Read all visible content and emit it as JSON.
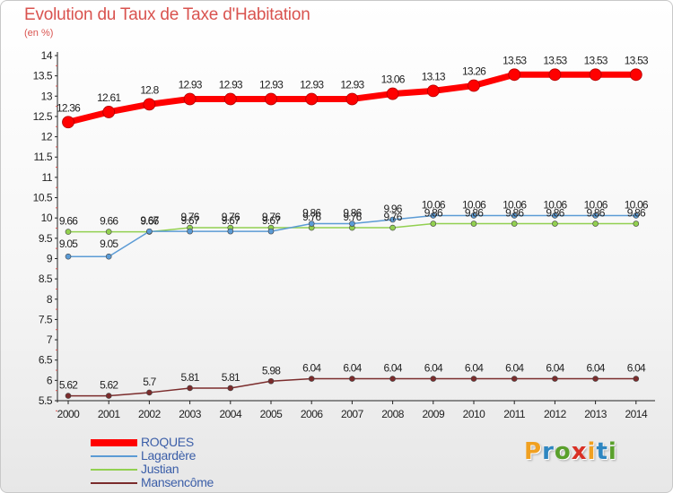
{
  "header": {
    "title": "Evolution du Taux de Taxe d'Habitation",
    "unit": "(en %)"
  },
  "chart_data": {
    "type": "line",
    "title": "Evolution du Taux de Taxe d'Habitation",
    "ylabel": "(en %)",
    "xlabel": "",
    "ylim": [
      5.5,
      14
    ],
    "yticks": [
      5.5,
      6,
      6.5,
      7,
      7.5,
      8,
      8.5,
      9,
      9.5,
      10,
      10.5,
      11,
      11.5,
      12,
      12.5,
      13,
      13.5,
      14
    ],
    "categories": [
      "2000",
      "2001",
      "2002",
      "2003",
      "2004",
      "2005",
      "2006",
      "2007",
      "2008",
      "2009",
      "2010",
      "2011",
      "2012",
      "2013",
      "2014"
    ],
    "series": [
      {
        "name": "ROQUES",
        "color": "#ff0000",
        "values": [
          12.36,
          12.61,
          12.8,
          12.93,
          12.93,
          12.93,
          12.93,
          12.93,
          13.06,
          13.13,
          13.26,
          13.53,
          13.53,
          13.53,
          13.53
        ],
        "labels": [
          "12.36",
          "12.61",
          "12.8",
          "12.93",
          "12.93",
          "12.93",
          "12.93",
          "12.93",
          "13.06",
          "13.13",
          "13.26",
          "13.53",
          "13.53",
          "13.53",
          "13.53"
        ]
      },
      {
        "name": "Lagardère",
        "color": "#5b9bd5",
        "values": [
          9.05,
          9.05,
          9.67,
          9.67,
          9.67,
          9.67,
          9.86,
          9.86,
          9.96,
          10.06,
          10.06,
          10.06,
          10.06,
          10.06,
          10.06
        ],
        "labels": [
          "9.05",
          "9.05",
          "9.67",
          "9.67",
          "9.67",
          "9.67",
          "9.86",
          "9.86",
          "9.96",
          "10.06",
          "10.06",
          "10.06",
          "10.06",
          "10.06",
          "10.06"
        ]
      },
      {
        "name": "Justian",
        "color": "#92d050",
        "values": [
          9.66,
          9.66,
          9.66,
          9.76,
          9.76,
          9.76,
          9.76,
          9.76,
          9.76,
          9.86,
          9.86,
          9.86,
          9.86,
          9.86,
          9.86
        ],
        "labels": [
          "9.66",
          "9.66",
          "9.66",
          "9.76",
          "9.76",
          "9.76",
          "9.76",
          "9.76",
          "9.76",
          "9.86",
          "9.86",
          "9.86",
          "9.86",
          "9.86",
          "9.86"
        ]
      },
      {
        "name": "Mansencôme",
        "color": "#7b2c2c",
        "values": [
          5.62,
          5.62,
          5.7,
          5.81,
          5.81,
          5.98,
          6.04,
          6.04,
          6.04,
          6.04,
          6.04,
          6.04,
          6.04,
          6.04,
          6.04
        ],
        "labels": [
          "5.62",
          "5.62",
          "5.7",
          "5.81",
          "5.81",
          "5.98",
          "6.04",
          "6.04",
          "6.04",
          "6.04",
          "6.04",
          "6.04",
          "6.04",
          "6.04",
          "6.04"
        ]
      }
    ]
  },
  "legend": [
    {
      "label": "ROQUES",
      "color": "#ff0000"
    },
    {
      "label": "Lagardère",
      "color": "#5b9bd5"
    },
    {
      "label": "Justian",
      "color": "#92d050"
    },
    {
      "label": "Mansencôme",
      "color": "#7b2c2c"
    }
  ],
  "brand": {
    "letters": [
      "P",
      "r",
      "o",
      "x",
      "i",
      "t",
      "i"
    ],
    "colors": [
      "#f0a020",
      "#2e86c1",
      "#5aa02c",
      "#d93025",
      "#f0a020",
      "#2e86c1",
      "#5aa02c"
    ]
  }
}
